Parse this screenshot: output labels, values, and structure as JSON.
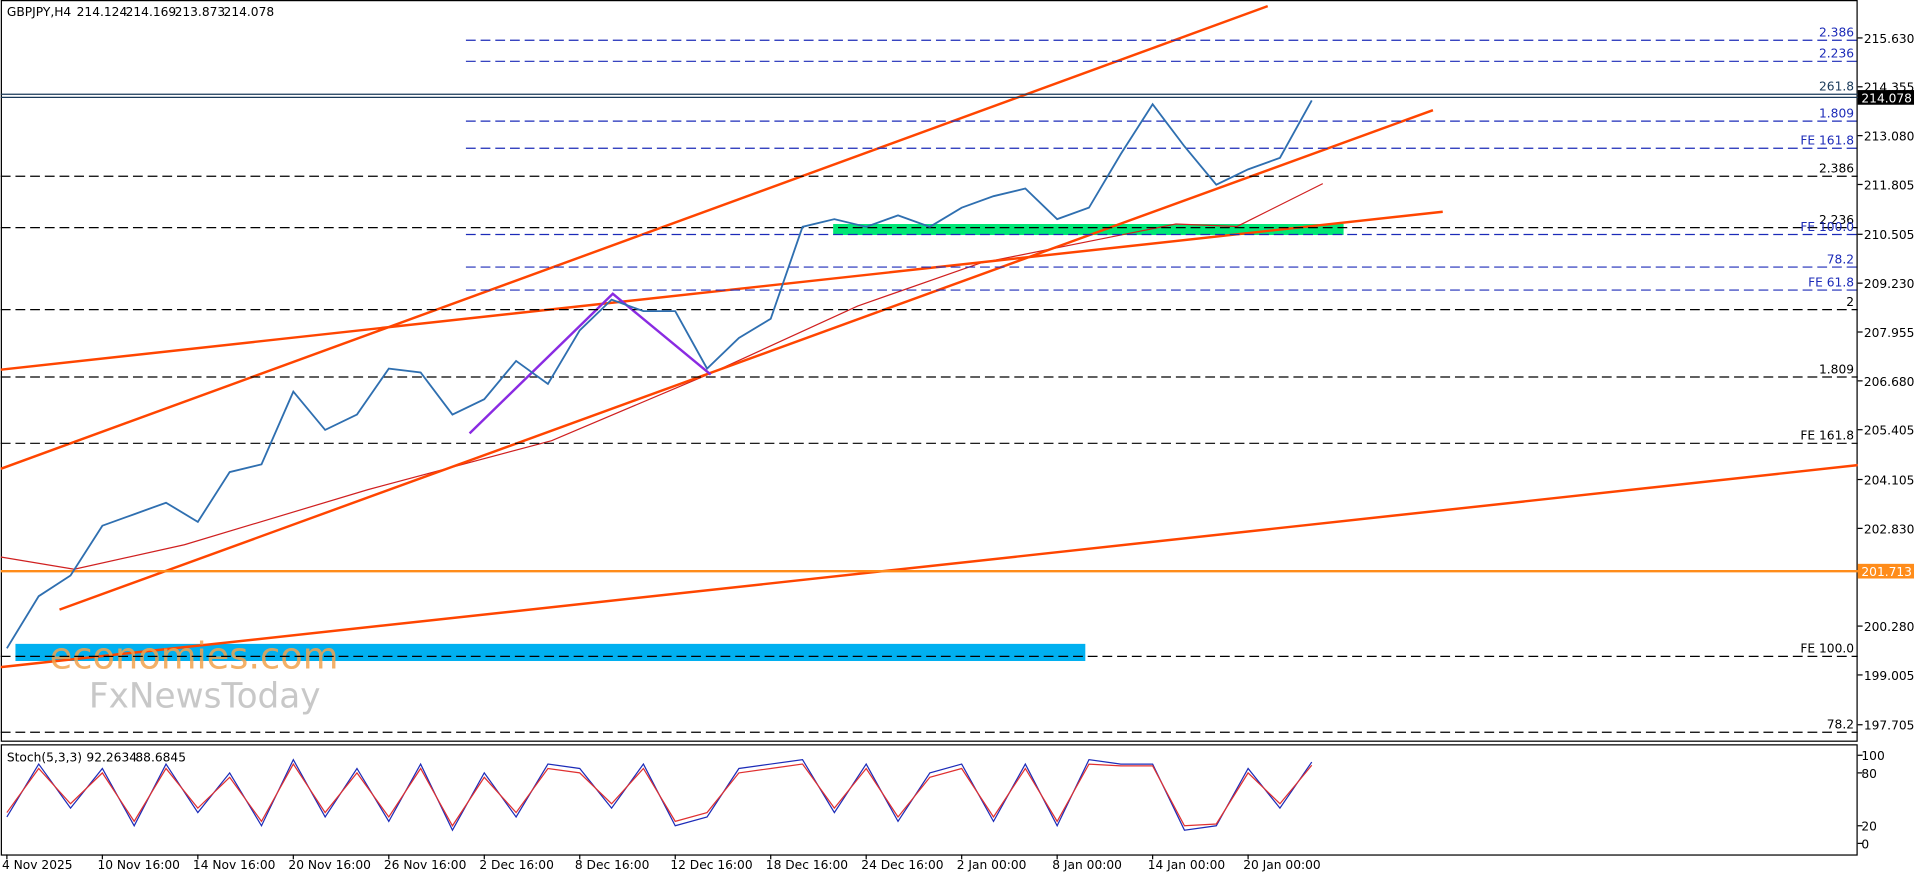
{
  "chart_data": {
    "type": "line",
    "title": "GBPJPY,H4",
    "ohlc": [
      214.124,
      214.169,
      213.873,
      214.078
    ],
    "categories": [
      "4 Nov 2025",
      null,
      null,
      "10 Nov 16:00",
      null,
      null,
      "14 Nov 16:00",
      null,
      null,
      "20 Nov 16:00",
      null,
      null,
      "26 Nov 16:00",
      null,
      null,
      "2 Dec 16:00",
      null,
      null,
      "8 Dec 16:00",
      null,
      null,
      "12 Dec 16:00",
      null,
      null,
      "18 Dec 16:00",
      null,
      null,
      "24 Dec 16:00",
      null,
      null,
      "2 Jan 00:00",
      null,
      null,
      "8 Jan 00:00",
      null,
      null,
      "14 Jan 00:00",
      null,
      null,
      "20 Jan 00:00",
      null,
      null
    ],
    "series": [
      {
        "name": "GBPJPY",
        "color": "#2f6fb0",
        "values": [
          199.7,
          201.06,
          201.6,
          202.9,
          203.2,
          203.5,
          203.0,
          204.3,
          204.5,
          206.4,
          205.4,
          205.8,
          207.0,
          206.9,
          205.8,
          206.2,
          207.2,
          206.6,
          208.0,
          208.8,
          208.5,
          208.5,
          207.0,
          207.8,
          208.3,
          210.7,
          210.9,
          210.7,
          211.0,
          210.7,
          211.2,
          211.5,
          211.7,
          210.9,
          211.2,
          212.6,
          213.9,
          212.8,
          211.8,
          212.2,
          212.5,
          214.0
        ]
      }
    ],
    "ylim": [
      197.26,
      216.62
    ],
    "yticks": [
      {
        "value": 215.63,
        "label": "215.630"
      },
      214.355,
      {
        "value": 213.08,
        "label": "213.080"
      },
      211.805,
      210.505,
      {
        "value": 209.23,
        "label": "209.230"
      },
      207.955,
      {
        "value": 206.68,
        "label": "206.680"
      },
      205.405,
      204.105,
      {
        "value": 202.83,
        "label": "202.830"
      },
      {
        "value": 200.28,
        "label": "200.280"
      },
      199.005,
      197.705
    ],
    "levels": [
      {
        "name": "2.386",
        "value": 215.57,
        "color": "#1c2bb8"
      },
      {
        "name": "2.236",
        "value": 215.02,
        "color": "#1c2bb8"
      },
      {
        "name": "261.8",
        "value": 214.16,
        "color": "#1a3a5a"
      },
      {
        "name": "1.809",
        "value": 213.46,
        "color": "#1c2bb8"
      },
      {
        "name": "FE 161.8",
        "value": 212.75,
        "color": "#1c2bb8"
      },
      {
        "name": "2.386",
        "value": 212.02,
        "color": "#000000"
      },
      {
        "name": "2.236",
        "value": 210.68,
        "color": "#000000"
      },
      {
        "name": "FE 100.0",
        "value": 210.5,
        "color": "#1c2bb8"
      },
      {
        "name": "78.2",
        "value": 209.65,
        "color": "#1c2bb8"
      },
      {
        "name": "FE 61.8",
        "value": 209.05,
        "color": "#1c2bb8"
      },
      {
        "name": "2",
        "value": 208.54,
        "color": "#000000"
      },
      {
        "name": "1.809",
        "value": 206.78,
        "color": "#000000"
      },
      {
        "name": "FE 161.8",
        "value": 205.05,
        "color": "#000000"
      },
      {
        "name": "FE 100.0",
        "value": 199.49,
        "color": "#000000"
      },
      {
        "name": "78.2",
        "value": 197.51,
        "color": "#000000"
      }
    ],
    "hline": {
      "value": 201.713,
      "color": "#ff8c1a"
    },
    "watermarks": [
      "economies.com",
      "FxNewsToday"
    ],
    "stoch": {
      "name": "Stoch(5,3,3)",
      "readings": [
        92.2634,
        88.6845
      ],
      "ylim": [
        0,
        100
      ],
      "yticks": [
        100,
        80,
        20,
        0
      ],
      "series": [
        {
          "name": "Main",
          "color": "#1c2bb8",
          "values": [
            30,
            90,
            40,
            85,
            20,
            90,
            35,
            80,
            20,
            95,
            30,
            85,
            25,
            90,
            15,
            80,
            30,
            90,
            85,
            40,
            90,
            20,
            30,
            85,
            90,
            95,
            35,
            90,
            25,
            80,
            90,
            25,
            90,
            20,
            95,
            90,
            90,
            15,
            20,
            85,
            40,
            92.2634
          ]
        },
        {
          "name": "Signal",
          "color": "#e03030",
          "values": [
            35,
            85,
            45,
            80,
            25,
            85,
            40,
            75,
            25,
            90,
            35,
            80,
            30,
            85,
            20,
            75,
            35,
            85,
            80,
            45,
            85,
            25,
            35,
            80,
            85,
            90,
            40,
            85,
            30,
            75,
            85,
            30,
            85,
            25,
            90,
            88,
            88,
            20,
            22,
            80,
            45,
            88.6845
          ]
        }
      ]
    }
  }
}
